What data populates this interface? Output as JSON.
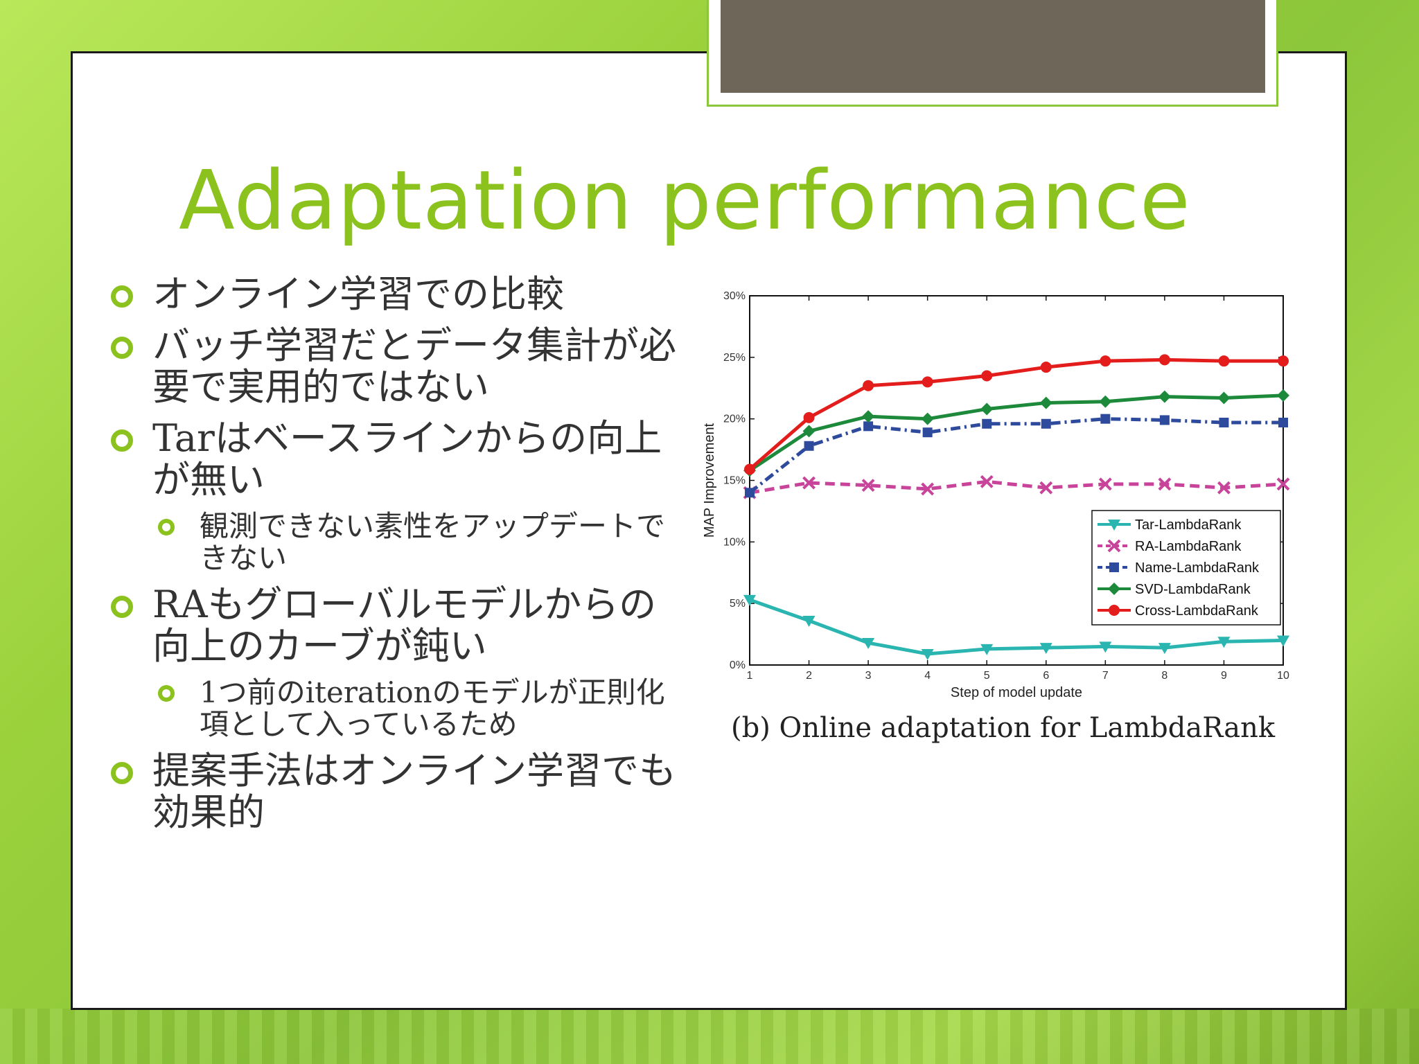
{
  "slide": {
    "title": "Adaptation performance",
    "bullets": [
      {
        "level": 1,
        "text": "オンライン学習での比較"
      },
      {
        "level": 1,
        "text": "バッチ学習だとデータ集計が必要で実用的ではない"
      },
      {
        "level": 1,
        "text": "Tarはベースラインからの向上が無い"
      },
      {
        "level": 2,
        "text": "観測できない素性をアップデートできない"
      },
      {
        "level": 1,
        "text": "RAもグローバルモデルからの向上のカーブが鈍い"
      },
      {
        "level": 2,
        "text": "1つ前のiterationのモデルが正則化項として入っているため"
      },
      {
        "level": 1,
        "text": "提案手法はオンライン学習でも効果的"
      }
    ],
    "caption": "(b) Online adaptation for LambdaRank"
  },
  "chart_data": {
    "type": "line",
    "xlabel": "Step of model update",
    "ylabel": "MAP Improvement",
    "x": [
      1,
      2,
      3,
      4,
      5,
      6,
      7,
      8,
      9,
      10
    ],
    "xlim": [
      1,
      10
    ],
    "ylim": [
      0,
      30
    ],
    "yticks": [
      "0%",
      "5%",
      "10%",
      "15%",
      "20%",
      "25%",
      "30%"
    ],
    "legend_position": "lower-right",
    "grid": false,
    "series": [
      {
        "name": "Tar-LambdaRank",
        "color": "#2ab5b0",
        "marker": "triangle-down",
        "dash": "solid",
        "values": [
          5.3,
          3.6,
          1.8,
          0.9,
          1.3,
          1.4,
          1.5,
          1.4,
          1.9,
          2.0
        ]
      },
      {
        "name": "RA-LambdaRank",
        "color": "#c8439a",
        "marker": "x",
        "dash": "dashed",
        "values": [
          14.0,
          14.8,
          14.6,
          14.3,
          14.9,
          14.4,
          14.7,
          14.7,
          14.4,
          14.7
        ]
      },
      {
        "name": "Name-LambdaRank",
        "color": "#2e4a9c",
        "marker": "square",
        "dash": "dashdot",
        "values": [
          14.0,
          17.8,
          19.4,
          18.9,
          19.6,
          19.6,
          20.0,
          19.9,
          19.7,
          19.7
        ]
      },
      {
        "name": "SVD-LambdaRank",
        "color": "#1c8a3a",
        "marker": "diamond",
        "dash": "solid",
        "values": [
          15.8,
          19.0,
          20.2,
          20.0,
          20.8,
          21.3,
          21.4,
          21.8,
          21.7,
          21.9
        ]
      },
      {
        "name": "Cross-LambdaRank",
        "color": "#e31c1c",
        "marker": "circle",
        "dash": "solid",
        "values": [
          15.9,
          20.1,
          22.7,
          23.0,
          23.5,
          24.2,
          24.7,
          24.8,
          24.7,
          24.7
        ]
      }
    ]
  }
}
